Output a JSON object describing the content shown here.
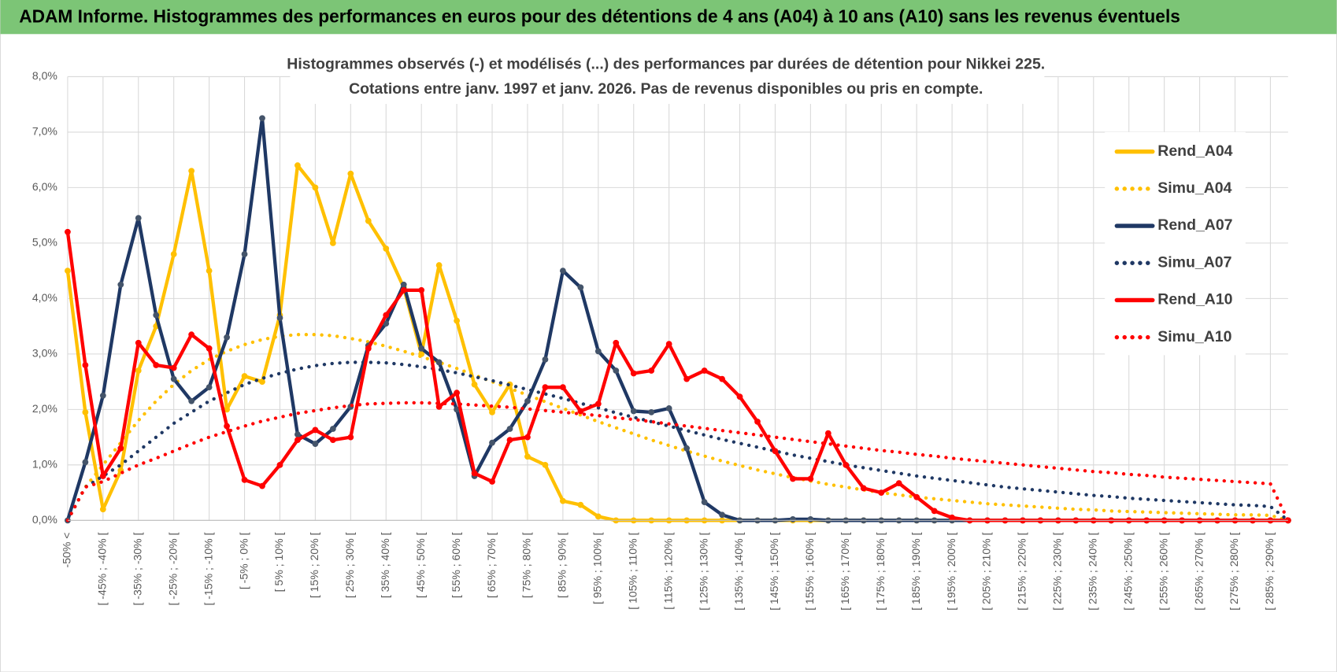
{
  "header": {
    "title": "ADAM Informe. Histogrammes des performances en euros pour des détentions de 4 ans (A04) à 10 ans (A10) sans les revenus éventuels"
  },
  "chart_data": {
    "type": "line",
    "title": "Histogrammes observés (-) et modélisés (...) des performances par durées de détention pour Nikkei 225.",
    "subtitle": "Cotations entre janv. 1997 et janv. 2026. Pas de revenus disponibles ou pris en compte.",
    "categories": [
      "-50% <",
      null,
      "[ -45% ; -40% [",
      null,
      "[ -35% ; -30% [",
      null,
      "[ -25% ; -20% [",
      null,
      "[ -15% ; -10% [",
      null,
      "[ -5% ; 0% [",
      null,
      "[ 5% ; 10% [",
      null,
      "[ 15% ; 20% [",
      null,
      "[ 25% ; 30% [",
      null,
      "[ 35% ; 40% [",
      null,
      "[ 45% ; 50% [",
      null,
      "[ 55% ; 60% [",
      null,
      "[ 65% ; 70% [",
      null,
      "[ 75% ; 80% [",
      null,
      "[ 85% ; 90% [",
      null,
      "[ 95% ; 100% [",
      null,
      "[ 105% ; 110% [",
      null,
      "[ 115% ; 120% [",
      null,
      "[ 125% ; 130% [",
      null,
      "[ 135% ; 140% [",
      null,
      "[ 145% ; 150% [",
      null,
      "[ 155% ; 160% [",
      null,
      "[ 165% ; 170% [",
      null,
      "[ 175% ; 180% [",
      null,
      "[ 185% ; 190% [",
      null,
      "[ 195% ; 200% [",
      null,
      "[ 205% ; 210% [",
      null,
      "[ 215% ; 220% [",
      null,
      "[ 225% ; 230% [",
      null,
      "[ 235% ; 240% [",
      null,
      "[ 245% ; 250% [",
      null,
      "[ 255% ; 260% [",
      null,
      "[ 265% ; 270% [",
      null,
      "[ 275% ; 280% [",
      null,
      "[ 285% ; 290% [",
      null
    ],
    "series": [
      {
        "name": "Rend_A04",
        "color": "#FFC000",
        "style": "solid",
        "markers": true,
        "values": [
          4.5,
          1.95,
          0.2,
          0.9,
          2.7,
          3.5,
          4.8,
          6.3,
          4.5,
          2.0,
          2.6,
          2.5,
          3.7,
          6.4,
          6.0,
          5.0,
          6.25,
          5.4,
          4.9,
          4.2,
          3.0,
          4.6,
          3.6,
          2.45,
          1.95,
          2.45,
          1.15,
          1.0,
          0.35,
          0.28,
          0.07,
          0,
          0,
          0,
          0,
          0,
          0,
          0,
          0,
          0,
          0,
          0,
          0,
          0,
          0,
          0,
          0,
          0,
          0,
          0,
          0,
          0,
          0,
          0,
          0,
          0,
          0,
          0,
          0,
          0,
          0,
          0,
          0,
          0,
          0,
          0,
          0,
          0,
          0,
          0
        ]
      },
      {
        "name": "Simu_A04",
        "color": "#FFC000",
        "style": "dotted",
        "markers": false,
        "values": [
          0,
          0.6,
          1.0,
          1.4,
          1.8,
          2.15,
          2.45,
          2.7,
          2.9,
          3.05,
          3.17,
          3.26,
          3.32,
          3.35,
          3.35,
          3.33,
          3.28,
          3.22,
          3.14,
          3.05,
          2.95,
          2.85,
          2.74,
          2.62,
          2.5,
          2.38,
          2.26,
          2.14,
          2.02,
          1.9,
          1.78,
          1.67,
          1.56,
          1.45,
          1.35,
          1.25,
          1.16,
          1.07,
          0.99,
          0.91,
          0.84,
          0.77,
          0.71,
          0.65,
          0.6,
          0.55,
          0.5,
          0.46,
          0.42,
          0.39,
          0.36,
          0.33,
          0.3,
          0.28,
          0.26,
          0.24,
          0.22,
          0.2,
          0.19,
          0.17,
          0.16,
          0.15,
          0.14,
          0.13,
          0.12,
          0.11,
          0.1,
          0.1,
          0.09,
          0
        ]
      },
      {
        "name": "Rend_A07",
        "color": "#1F3864",
        "marker_color": "#44546A",
        "style": "solid",
        "markers": true,
        "values": [
          0,
          1.05,
          2.25,
          4.25,
          5.45,
          3.7,
          2.55,
          2.15,
          2.4,
          3.3,
          4.8,
          7.25,
          3.65,
          1.55,
          1.38,
          1.65,
          2.05,
          3.15,
          3.55,
          4.25,
          3.1,
          2.85,
          2.0,
          0.8,
          1.4,
          1.65,
          2.15,
          2.9,
          4.5,
          4.2,
          3.05,
          2.7,
          1.97,
          1.95,
          2.02,
          1.3,
          0.33,
          0.1,
          0,
          0,
          0,
          0.02,
          0.02,
          0,
          0,
          0,
          0,
          0,
          0,
          0,
          0,
          0,
          0,
          0,
          0,
          0,
          0,
          0,
          0,
          0,
          0,
          0,
          0,
          0,
          0,
          0,
          0,
          0,
          0,
          0
        ]
      },
      {
        "name": "Simu_A07",
        "color": "#1F3864",
        "style": "dotted",
        "markers": false,
        "values": [
          0,
          0.6,
          0.8,
          1.0,
          1.25,
          1.5,
          1.75,
          1.95,
          2.15,
          2.3,
          2.45,
          2.56,
          2.65,
          2.73,
          2.79,
          2.83,
          2.85,
          2.85,
          2.84,
          2.81,
          2.77,
          2.72,
          2.66,
          2.59,
          2.52,
          2.44,
          2.36,
          2.28,
          2.2,
          2.11,
          2.03,
          1.94,
          1.86,
          1.78,
          1.7,
          1.62,
          1.54,
          1.46,
          1.39,
          1.32,
          1.25,
          1.18,
          1.12,
          1.06,
          1.0,
          0.95,
          0.9,
          0.85,
          0.8,
          0.76,
          0.72,
          0.68,
          0.64,
          0.6,
          0.57,
          0.54,
          0.51,
          0.48,
          0.45,
          0.43,
          0.4,
          0.38,
          0.36,
          0.34,
          0.32,
          0.3,
          0.28,
          0.27,
          0.25,
          0
        ]
      },
      {
        "name": "Rend_A10",
        "color": "#FF0000",
        "style": "solid",
        "markers": true,
        "values": [
          5.2,
          2.8,
          0.8,
          1.3,
          3.2,
          2.8,
          2.75,
          3.35,
          3.1,
          1.7,
          0.73,
          0.62,
          1.0,
          1.45,
          1.63,
          1.45,
          1.5,
          3.1,
          3.7,
          4.15,
          4.15,
          2.05,
          2.3,
          0.85,
          0.7,
          1.45,
          1.5,
          2.4,
          2.4,
          1.97,
          2.1,
          3.2,
          2.65,
          2.7,
          3.18,
          2.55,
          2.7,
          2.55,
          2.23,
          1.78,
          1.25,
          0.75,
          0.75,
          1.57,
          1.0,
          0.58,
          0.5,
          0.67,
          0.42,
          0.17,
          0.05,
          0,
          0,
          0,
          0,
          0,
          0,
          0,
          0,
          0,
          0,
          0,
          0,
          0,
          0,
          0,
          0,
          0,
          0,
          0
        ]
      },
      {
        "name": "Simu_A10",
        "color": "#FF0000",
        "style": "dotted",
        "markers": false,
        "values": [
          0,
          0.6,
          0.7,
          0.85,
          1.0,
          1.12,
          1.25,
          1.38,
          1.5,
          1.6,
          1.7,
          1.79,
          1.86,
          1.93,
          1.98,
          2.03,
          2.07,
          2.1,
          2.11,
          2.12,
          2.12,
          2.11,
          2.1,
          2.08,
          2.06,
          2.04,
          2.01,
          1.98,
          1.95,
          1.92,
          1.89,
          1.85,
          1.82,
          1.78,
          1.74,
          1.7,
          1.66,
          1.62,
          1.58,
          1.54,
          1.5,
          1.46,
          1.42,
          1.38,
          1.34,
          1.3,
          1.26,
          1.23,
          1.19,
          1.16,
          1.12,
          1.09,
          1.06,
          1.03,
          1.0,
          0.97,
          0.94,
          0.91,
          0.88,
          0.86,
          0.83,
          0.81,
          0.78,
          0.76,
          0.74,
          0.72,
          0.7,
          0.68,
          0.66,
          0
        ]
      }
    ],
    "ylim": [
      0,
      8
    ],
    "yticks": [
      {
        "value": 0,
        "label": "0,0%"
      },
      {
        "value": 1,
        "label": "1,0%"
      },
      {
        "value": 2,
        "label": "2,0%"
      },
      {
        "value": 3,
        "label": "3,0%"
      },
      {
        "value": 4,
        "label": "4,0%"
      },
      {
        "value": 5,
        "label": "5,0%"
      },
      {
        "value": 6,
        "label": "6,0%"
      },
      {
        "value": 7,
        "label": "7,0%"
      },
      {
        "value": 8,
        "label": "8,0%"
      }
    ],
    "grid": true,
    "legend": "right"
  }
}
